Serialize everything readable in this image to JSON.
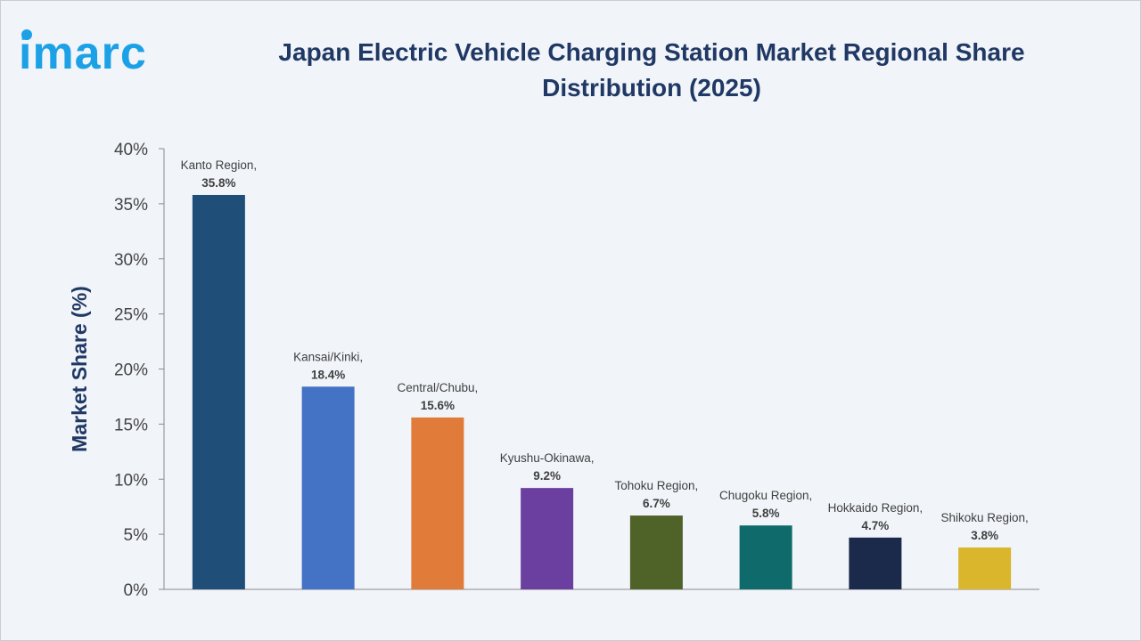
{
  "brand": {
    "logo_text": "imarc",
    "logo_color": "#1da1e6"
  },
  "chart_data": {
    "type": "bar",
    "title": "Japan Electric Vehicle Charging Station Market Regional Share Distribution (2025)",
    "xlabel": "",
    "ylabel": "Market Share (%)",
    "ylim": [
      0,
      40
    ],
    "y_ticks": [
      "0%",
      "5%",
      "10%",
      "15%",
      "20%",
      "25%",
      "30%",
      "35%",
      "40%"
    ],
    "grid": false,
    "categories": [
      "Kanto Region",
      "Kansai/Kinki",
      "Central/Chubu",
      "Kyushu-Okinawa",
      "Tohoku Region",
      "Chugoku Region",
      "Hokkaido Region",
      "Shikoku Region"
    ],
    "values": [
      35.8,
      18.4,
      15.6,
      9.2,
      6.7,
      5.8,
      4.7,
      3.8
    ],
    "data_labels": [
      "35.8%",
      "18.4%",
      "15.6%",
      "9.2%",
      "6.7%",
      "5.8%",
      "4.7%",
      "3.8%"
    ],
    "colors": [
      "#1f4e79",
      "#4472c4",
      "#e07b39",
      "#6b3fa0",
      "#4f6228",
      "#0f6b6b",
      "#1b2a4a",
      "#d9b62c"
    ]
  }
}
